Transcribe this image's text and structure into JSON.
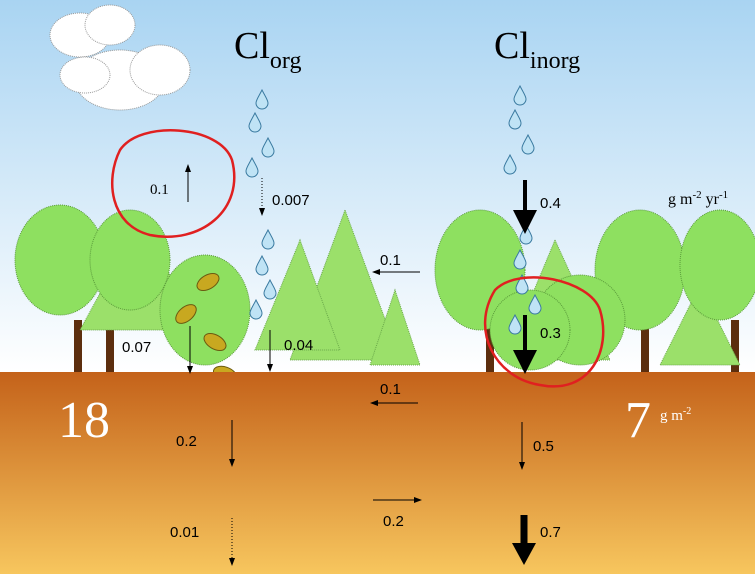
{
  "headers": [
    {
      "base": "Cl",
      "sub": "org"
    },
    {
      "base": "Cl",
      "sub": "inorg"
    }
  ],
  "units": {
    "flux": {
      "base": "g m",
      "exp1": "-2",
      "mid": " yr",
      "exp2": "-1"
    },
    "stock": {
      "base": "g m",
      "exp": "-2"
    }
  },
  "stocks": [
    "18",
    "7"
  ],
  "fluxes": [
    "0.1",
    "0.007",
    "0.4",
    "0.1",
    "0.07",
    "0.04",
    "0.3",
    "0.1",
    "0.2",
    "0.5",
    "0.2",
    "0.01",
    "0.7"
  ]
}
